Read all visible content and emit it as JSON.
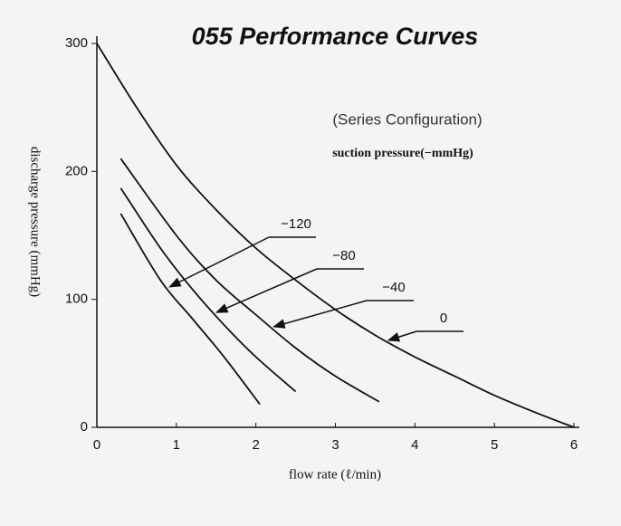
{
  "chart_data": {
    "type": "line",
    "title": "055 Performance Curves",
    "subtitle": "(Series Configuration)",
    "legend_title": "suction pressure(−mmHg)",
    "xlabel": "flow rate (ℓ/min)",
    "ylabel": "discharge pressure (mmHg)",
    "xlim": [
      0,
      6
    ],
    "ylim": [
      0,
      300
    ],
    "xticks": [
      0,
      1,
      2,
      3,
      4,
      5,
      6
    ],
    "yticks": [
      0,
      100,
      200,
      300
    ],
    "grid": false,
    "series": [
      {
        "name": "0",
        "color": "#111111",
        "x": [
          0,
          0.5,
          1,
          1.5,
          2,
          2.5,
          3,
          3.5,
          4,
          4.5,
          5,
          5.5,
          6
        ],
        "values": [
          300,
          250,
          205,
          170,
          140,
          115,
          92,
          72,
          55,
          40,
          25,
          12,
          0
        ]
      },
      {
        "name": "−40",
        "color": "#111111",
        "x": [
          0.3,
          1,
          1.5,
          2,
          2.5,
          3,
          3.55
        ],
        "values": [
          210,
          150,
          115,
          88,
          62,
          40,
          20
        ]
      },
      {
        "name": "−80",
        "color": "#111111",
        "x": [
          0.3,
          0.8,
          1.2,
          1.6,
          2,
          2.5
        ],
        "values": [
          187,
          140,
          108,
          80,
          55,
          28
        ]
      },
      {
        "name": "−120",
        "color": "#111111",
        "x": [
          0.3,
          0.8,
          1.2,
          1.6,
          2.05
        ],
        "values": [
          167,
          115,
          85,
          55,
          18
        ]
      }
    ]
  }
}
